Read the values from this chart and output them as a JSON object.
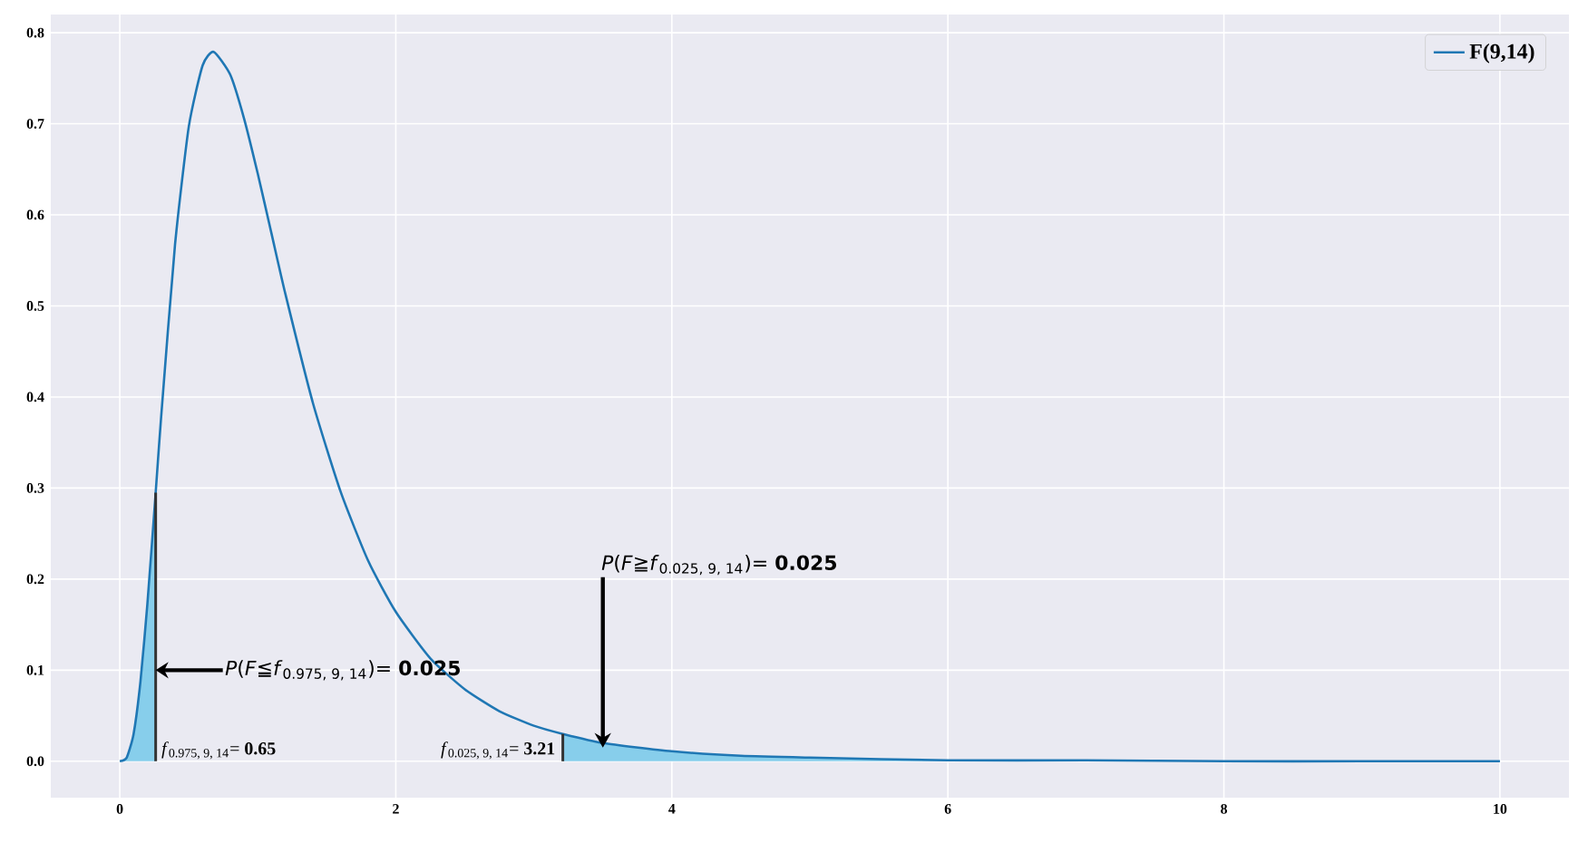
{
  "chart_data": {
    "type": "line",
    "series": [
      {
        "name": "F(9,14)",
        "color": "#1f77b4",
        "x": [
          0,
          0.05,
          0.1,
          0.15,
          0.2,
          0.26,
          0.3,
          0.4,
          0.5,
          0.6,
          0.68,
          0.8,
          0.9,
          1.0,
          1.1,
          1.2,
          1.4,
          1.6,
          1.8,
          2.0,
          2.25,
          2.5,
          2.75,
          3.0,
          3.21,
          3.5,
          4,
          4.5,
          5,
          6,
          7,
          8,
          9,
          10
        ],
        "values": [
          0,
          0.004,
          0.03,
          0.088,
          0.173,
          0.295,
          0.379,
          0.567,
          0.697,
          0.764,
          0.779,
          0.754,
          0.706,
          0.645,
          0.579,
          0.513,
          0.393,
          0.296,
          0.22,
          0.164,
          0.113,
          0.079,
          0.055,
          0.039,
          0.03,
          0.02,
          0.011,
          0.006,
          0.004,
          0.001,
          0.001,
          0.0,
          0.0,
          0.0
        ]
      },
      {
        "type": "area",
        "color": "#87ceeb",
        "x": [
          0,
          0.05,
          0.1,
          0.15,
          0.2,
          0.26
        ],
        "values": [
          0,
          0.004,
          0.03,
          0.088,
          0.173,
          0.295
        ]
      },
      {
        "type": "area",
        "color": "#87ceeb",
        "x": [
          3.21,
          3.5,
          4,
          4.5,
          5,
          6,
          7,
          8,
          9,
          10
        ],
        "values": [
          0.03,
          0.02,
          0.011,
          0.006,
          0.004,
          0.001,
          0.001,
          0.0,
          0.0,
          0.0
        ]
      }
    ],
    "xlim": [
      -0.5,
      10.5
    ],
    "ylim": [
      -0.04,
      0.82
    ],
    "xticks": [
      0,
      2,
      4,
      6,
      8,
      10
    ],
    "yticks": [
      {
        "value": 0,
        "label": "0.0"
      },
      0.1,
      0.2,
      0.3,
      0.4,
      0.5,
      0.6,
      0.7,
      0.8
    ],
    "ref_lines": [
      {
        "axis": "x",
        "value": 0.26,
        "label": "*f*$_{0.975, 9, 14}$= **0.65**",
        "color": "#333333"
      },
      {
        "axis": "x",
        "value": 3.21,
        "label": "*f*$_{0.025, 9, 14}$= **3.21**",
        "color": "#333333"
      }
    ],
    "annotations": [
      {
        "text": "*P*(*F*≦*f*$_{0.975, 9, 14}$)= **0.025**",
        "x": 0.26,
        "y": 0.1
      },
      {
        "text": "*P*(*F*≧*f*$_{0.025, 9, 14}$)= **0.025**",
        "x": 3.5,
        "y": 0.015
      }
    ],
    "grid": true,
    "legend": "top right"
  }
}
